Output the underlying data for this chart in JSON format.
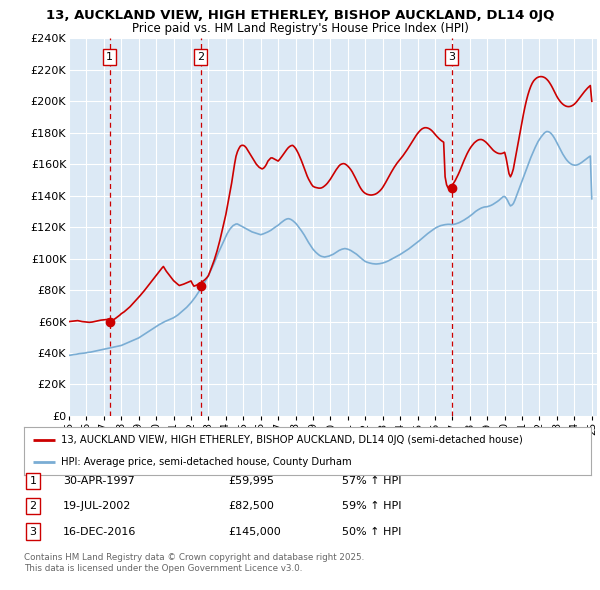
{
  "title": "13, AUCKLAND VIEW, HIGH ETHERLEY, BISHOP AUCKLAND, DL14 0JQ",
  "subtitle": "Price paid vs. HM Land Registry's House Price Index (HPI)",
  "ylim": [
    0,
    240000
  ],
  "yticks": [
    0,
    20000,
    40000,
    60000,
    80000,
    100000,
    120000,
    140000,
    160000,
    180000,
    200000,
    220000,
    240000
  ],
  "ytick_labels": [
    "£0",
    "£20K",
    "£40K",
    "£60K",
    "£80K",
    "£100K",
    "£120K",
    "£140K",
    "£160K",
    "£180K",
    "£200K",
    "£220K",
    "£240K"
  ],
  "sales": [
    {
      "date_num": 1997.33,
      "price": 59995,
      "label": "1"
    },
    {
      "date_num": 2002.55,
      "price": 82500,
      "label": "2"
    },
    {
      "date_num": 2016.96,
      "price": 145000,
      "label": "3"
    }
  ],
  "sale_annotations": [
    {
      "label": "1",
      "date": "30-APR-1997",
      "price": "£59,995",
      "pct": "57% ↑ HPI"
    },
    {
      "label": "2",
      "date": "19-JUL-2002",
      "price": "£82,500",
      "pct": "59% ↑ HPI"
    },
    {
      "label": "3",
      "date": "16-DEC-2016",
      "price": "£145,000",
      "pct": "50% ↑ HPI"
    }
  ],
  "hpi_color": "#7aadd4",
  "price_color": "#cc0000",
  "vline_color": "#cc0000",
  "background_color": "#dce9f5",
  "grid_color": "#ffffff",
  "legend_label_red": "13, AUCKLAND VIEW, HIGH ETHERLEY, BISHOP AUCKLAND, DL14 0JQ (semi-detached house)",
  "legend_label_blue": "HPI: Average price, semi-detached house, County Durham",
  "footer": "Contains HM Land Registry data © Crown copyright and database right 2025.\nThis data is licensed under the Open Government Licence v3.0.",
  "hpi_data_x": [
    1995.0,
    1995.083,
    1995.167,
    1995.25,
    1995.333,
    1995.417,
    1995.5,
    1995.583,
    1995.667,
    1995.75,
    1995.833,
    1995.917,
    1996.0,
    1996.083,
    1996.167,
    1996.25,
    1996.333,
    1996.417,
    1996.5,
    1996.583,
    1996.667,
    1996.75,
    1996.833,
    1996.917,
    1997.0,
    1997.083,
    1997.167,
    1997.25,
    1997.333,
    1997.417,
    1997.5,
    1997.583,
    1997.667,
    1997.75,
    1997.833,
    1997.917,
    1998.0,
    1998.083,
    1998.167,
    1998.25,
    1998.333,
    1998.417,
    1998.5,
    1998.583,
    1998.667,
    1998.75,
    1998.833,
    1998.917,
    1999.0,
    1999.083,
    1999.167,
    1999.25,
    1999.333,
    1999.417,
    1999.5,
    1999.583,
    1999.667,
    1999.75,
    1999.833,
    1999.917,
    2000.0,
    2000.083,
    2000.167,
    2000.25,
    2000.333,
    2000.417,
    2000.5,
    2000.583,
    2000.667,
    2000.75,
    2000.833,
    2000.917,
    2001.0,
    2001.083,
    2001.167,
    2001.25,
    2001.333,
    2001.417,
    2001.5,
    2001.583,
    2001.667,
    2001.75,
    2001.833,
    2001.917,
    2002.0,
    2002.083,
    2002.167,
    2002.25,
    2002.333,
    2002.417,
    2002.5,
    2002.583,
    2002.667,
    2002.75,
    2002.833,
    2002.917,
    2003.0,
    2003.083,
    2003.167,
    2003.25,
    2003.333,
    2003.417,
    2003.5,
    2003.583,
    2003.667,
    2003.75,
    2003.833,
    2003.917,
    2004.0,
    2004.083,
    2004.167,
    2004.25,
    2004.333,
    2004.417,
    2004.5,
    2004.583,
    2004.667,
    2004.75,
    2004.833,
    2004.917,
    2005.0,
    2005.083,
    2005.167,
    2005.25,
    2005.333,
    2005.417,
    2005.5,
    2005.583,
    2005.667,
    2005.75,
    2005.833,
    2005.917,
    2006.0,
    2006.083,
    2006.167,
    2006.25,
    2006.333,
    2006.417,
    2006.5,
    2006.583,
    2006.667,
    2006.75,
    2006.833,
    2006.917,
    2007.0,
    2007.083,
    2007.167,
    2007.25,
    2007.333,
    2007.417,
    2007.5,
    2007.583,
    2007.667,
    2007.75,
    2007.833,
    2007.917,
    2008.0,
    2008.083,
    2008.167,
    2008.25,
    2008.333,
    2008.417,
    2008.5,
    2008.583,
    2008.667,
    2008.75,
    2008.833,
    2008.917,
    2009.0,
    2009.083,
    2009.167,
    2009.25,
    2009.333,
    2009.417,
    2009.5,
    2009.583,
    2009.667,
    2009.75,
    2009.833,
    2009.917,
    2010.0,
    2010.083,
    2010.167,
    2010.25,
    2010.333,
    2010.417,
    2010.5,
    2010.583,
    2010.667,
    2010.75,
    2010.833,
    2010.917,
    2011.0,
    2011.083,
    2011.167,
    2011.25,
    2011.333,
    2011.417,
    2011.5,
    2011.583,
    2011.667,
    2011.75,
    2011.833,
    2011.917,
    2012.0,
    2012.083,
    2012.167,
    2012.25,
    2012.333,
    2012.417,
    2012.5,
    2012.583,
    2012.667,
    2012.75,
    2012.833,
    2012.917,
    2013.0,
    2013.083,
    2013.167,
    2013.25,
    2013.333,
    2013.417,
    2013.5,
    2013.583,
    2013.667,
    2013.75,
    2013.833,
    2013.917,
    2014.0,
    2014.083,
    2014.167,
    2014.25,
    2014.333,
    2014.417,
    2014.5,
    2014.583,
    2014.667,
    2014.75,
    2014.833,
    2014.917,
    2015.0,
    2015.083,
    2015.167,
    2015.25,
    2015.333,
    2015.417,
    2015.5,
    2015.583,
    2015.667,
    2015.75,
    2015.833,
    2015.917,
    2016.0,
    2016.083,
    2016.167,
    2016.25,
    2016.333,
    2016.417,
    2016.5,
    2016.583,
    2016.667,
    2016.75,
    2016.833,
    2016.917,
    2017.0,
    2017.083,
    2017.167,
    2017.25,
    2017.333,
    2017.417,
    2017.5,
    2017.583,
    2017.667,
    2017.75,
    2017.833,
    2017.917,
    2018.0,
    2018.083,
    2018.167,
    2018.25,
    2018.333,
    2018.417,
    2018.5,
    2018.583,
    2018.667,
    2018.75,
    2018.833,
    2018.917,
    2019.0,
    2019.083,
    2019.167,
    2019.25,
    2019.333,
    2019.417,
    2019.5,
    2019.583,
    2019.667,
    2019.75,
    2019.833,
    2019.917,
    2020.0,
    2020.083,
    2020.167,
    2020.25,
    2020.333,
    2020.417,
    2020.5,
    2020.583,
    2020.667,
    2020.75,
    2020.833,
    2020.917,
    2021.0,
    2021.083,
    2021.167,
    2021.25,
    2021.333,
    2021.417,
    2021.5,
    2021.583,
    2021.667,
    2021.75,
    2021.833,
    2021.917,
    2022.0,
    2022.083,
    2022.167,
    2022.25,
    2022.333,
    2022.417,
    2022.5,
    2022.583,
    2022.667,
    2022.75,
    2022.833,
    2022.917,
    2023.0,
    2023.083,
    2023.167,
    2023.25,
    2023.333,
    2023.417,
    2023.5,
    2023.583,
    2023.667,
    2023.75,
    2023.833,
    2023.917,
    2024.0,
    2024.083,
    2024.167,
    2024.25,
    2024.333,
    2024.417,
    2024.5,
    2024.583,
    2024.667,
    2024.75,
    2024.833,
    2024.917,
    2025.0
  ],
  "hpi_data_y": [
    38500,
    38600,
    38800,
    39000,
    39100,
    39200,
    39400,
    39600,
    39700,
    39800,
    39900,
    40000,
    40200,
    40400,
    40500,
    40600,
    40800,
    41000,
    41200,
    41400,
    41600,
    41800,
    42000,
    42200,
    42400,
    42600,
    42800,
    43000,
    43200,
    43400,
    43600,
    43800,
    44000,
    44200,
    44400,
    44600,
    44800,
    45200,
    45600,
    46000,
    46400,
    46800,
    47200,
    47600,
    48000,
    48400,
    48800,
    49200,
    49600,
    50200,
    50800,
    51400,
    52000,
    52600,
    53200,
    53800,
    54400,
    55000,
    55600,
    56200,
    56800,
    57400,
    58000,
    58500,
    59000,
    59500,
    60000,
    60400,
    60800,
    61200,
    61600,
    62000,
    62400,
    63000,
    63600,
    64200,
    65000,
    65800,
    66600,
    67400,
    68200,
    69000,
    70000,
    71000,
    72000,
    73200,
    74400,
    75600,
    77000,
    78400,
    79800,
    81200,
    82600,
    84200,
    85800,
    87400,
    89200,
    91200,
    93200,
    95200,
    97200,
    99500,
    101800,
    104000,
    106000,
    108000,
    110000,
    112000,
    114000,
    116000,
    117500,
    119000,
    120000,
    121000,
    121500,
    122000,
    122000,
    121500,
    121000,
    120500,
    120000,
    119500,
    119000,
    118500,
    118000,
    117500,
    117000,
    116700,
    116400,
    116100,
    115800,
    115500,
    115200,
    115500,
    115800,
    116200,
    116600,
    117000,
    117500,
    118000,
    118700,
    119400,
    120000,
    120600,
    121200,
    122000,
    122800,
    123500,
    124200,
    124800,
    125200,
    125400,
    125200,
    124800,
    124200,
    123400,
    122600,
    121500,
    120200,
    119000,
    117800,
    116400,
    115000,
    113400,
    111800,
    110200,
    108800,
    107400,
    106000,
    105000,
    104000,
    103200,
    102400,
    101800,
    101400,
    101200,
    101000,
    101200,
    101400,
    101600,
    102000,
    102400,
    102800,
    103400,
    104000,
    104600,
    105200,
    105600,
    106000,
    106200,
    106400,
    106200,
    106000,
    105600,
    105200,
    104600,
    104000,
    103400,
    102800,
    102000,
    101200,
    100400,
    99600,
    98900,
    98200,
    97800,
    97500,
    97200,
    97000,
    96800,
    96700,
    96600,
    96600,
    96700,
    96800,
    97000,
    97200,
    97500,
    97800,
    98200,
    98600,
    99100,
    99600,
    100100,
    100600,
    101100,
    101600,
    102100,
    102600,
    103200,
    103800,
    104400,
    105000,
    105600,
    106200,
    106900,
    107600,
    108300,
    109000,
    109700,
    110400,
    111200,
    112000,
    112800,
    113600,
    114400,
    115200,
    115900,
    116600,
    117300,
    118000,
    118600,
    119200,
    119800,
    120200,
    120600,
    121000,
    121200,
    121400,
    121600,
    121700,
    121800,
    121800,
    121700,
    121600,
    121800,
    122000,
    122300,
    122600,
    123000,
    123500,
    124000,
    124500,
    125100,
    125700,
    126300,
    127000,
    127700,
    128400,
    129200,
    130000,
    130600,
    131200,
    131700,
    132200,
    132500,
    132800,
    132900,
    133000,
    133300,
    133600,
    134000,
    134500,
    135100,
    135700,
    136300,
    137000,
    137800,
    138600,
    139400,
    139500,
    138500,
    137000,
    135000,
    133500,
    134000,
    135000,
    137000,
    139500,
    142000,
    144500,
    147000,
    149500,
    152000,
    154500,
    157000,
    159500,
    162000,
    164200,
    166400,
    168500,
    170600,
    172500,
    174400,
    175800,
    177200,
    178400,
    179500,
    180300,
    180800,
    180700,
    180300,
    179500,
    178400,
    177000,
    175400,
    173600,
    171800,
    170000,
    168200,
    166500,
    165000,
    163600,
    162400,
    161400,
    160600,
    160000,
    159600,
    159400,
    159400,
    159600,
    160000,
    160500,
    161100,
    161800,
    162500,
    163200,
    163900,
    164600,
    165200,
    138000
  ],
  "price_data_x": [
    1995.0,
    1995.083,
    1995.167,
    1995.25,
    1995.333,
    1995.417,
    1995.5,
    1995.583,
    1995.667,
    1995.75,
    1995.833,
    1995.917,
    1996.0,
    1996.083,
    1996.167,
    1996.25,
    1996.333,
    1996.417,
    1996.5,
    1996.583,
    1996.667,
    1996.75,
    1996.833,
    1996.917,
    1997.0,
    1997.083,
    1997.167,
    1997.25,
    1997.333,
    1997.417,
    1997.5,
    1997.583,
    1997.667,
    1997.75,
    1997.833,
    1997.917,
    1998.0,
    1998.083,
    1998.167,
    1998.25,
    1998.333,
    1998.417,
    1998.5,
    1998.583,
    1998.667,
    1998.75,
    1998.833,
    1998.917,
    1999.0,
    1999.083,
    1999.167,
    1999.25,
    1999.333,
    1999.417,
    1999.5,
    1999.583,
    1999.667,
    1999.75,
    1999.833,
    1999.917,
    2000.0,
    2000.083,
    2000.167,
    2000.25,
    2000.333,
    2000.417,
    2000.5,
    2000.583,
    2000.667,
    2000.75,
    2000.833,
    2000.917,
    2001.0,
    2001.083,
    2001.167,
    2001.25,
    2001.333,
    2001.417,
    2001.5,
    2001.583,
    2001.667,
    2001.75,
    2001.833,
    2001.917,
    2002.0,
    2002.083,
    2002.167,
    2002.25,
    2002.333,
    2002.417,
    2002.5,
    2002.583,
    2002.667,
    2002.75,
    2002.833,
    2002.917,
    2003.0,
    2003.083,
    2003.167,
    2003.25,
    2003.333,
    2003.417,
    2003.5,
    2003.583,
    2003.667,
    2003.75,
    2003.833,
    2003.917,
    2004.0,
    2004.083,
    2004.167,
    2004.25,
    2004.333,
    2004.417,
    2004.5,
    2004.583,
    2004.667,
    2004.75,
    2004.833,
    2004.917,
    2005.0,
    2005.083,
    2005.167,
    2005.25,
    2005.333,
    2005.417,
    2005.5,
    2005.583,
    2005.667,
    2005.75,
    2005.833,
    2005.917,
    2006.0,
    2006.083,
    2006.167,
    2006.25,
    2006.333,
    2006.417,
    2006.5,
    2006.583,
    2006.667,
    2006.75,
    2006.833,
    2006.917,
    2007.0,
    2007.083,
    2007.167,
    2007.25,
    2007.333,
    2007.417,
    2007.5,
    2007.583,
    2007.667,
    2007.75,
    2007.833,
    2007.917,
    2008.0,
    2008.083,
    2008.167,
    2008.25,
    2008.333,
    2008.417,
    2008.5,
    2008.583,
    2008.667,
    2008.75,
    2008.833,
    2008.917,
    2009.0,
    2009.083,
    2009.167,
    2009.25,
    2009.333,
    2009.417,
    2009.5,
    2009.583,
    2009.667,
    2009.75,
    2009.833,
    2009.917,
    2010.0,
    2010.083,
    2010.167,
    2010.25,
    2010.333,
    2010.417,
    2010.5,
    2010.583,
    2010.667,
    2010.75,
    2010.833,
    2010.917,
    2011.0,
    2011.083,
    2011.167,
    2011.25,
    2011.333,
    2011.417,
    2011.5,
    2011.583,
    2011.667,
    2011.75,
    2011.833,
    2011.917,
    2012.0,
    2012.083,
    2012.167,
    2012.25,
    2012.333,
    2012.417,
    2012.5,
    2012.583,
    2012.667,
    2012.75,
    2012.833,
    2012.917,
    2013.0,
    2013.083,
    2013.167,
    2013.25,
    2013.333,
    2013.417,
    2013.5,
    2013.583,
    2013.667,
    2013.75,
    2013.833,
    2013.917,
    2014.0,
    2014.083,
    2014.167,
    2014.25,
    2014.333,
    2014.417,
    2014.5,
    2014.583,
    2014.667,
    2014.75,
    2014.833,
    2014.917,
    2015.0,
    2015.083,
    2015.167,
    2015.25,
    2015.333,
    2015.417,
    2015.5,
    2015.583,
    2015.667,
    2015.75,
    2015.833,
    2015.917,
    2016.0,
    2016.083,
    2016.167,
    2016.25,
    2016.333,
    2016.417,
    2016.5,
    2016.583,
    2016.667,
    2016.75,
    2016.833,
    2016.917,
    2017.0,
    2017.083,
    2017.167,
    2017.25,
    2017.333,
    2017.417,
    2017.5,
    2017.583,
    2017.667,
    2017.75,
    2017.833,
    2017.917,
    2018.0,
    2018.083,
    2018.167,
    2018.25,
    2018.333,
    2018.417,
    2018.5,
    2018.583,
    2018.667,
    2018.75,
    2018.833,
    2018.917,
    2019.0,
    2019.083,
    2019.167,
    2019.25,
    2019.333,
    2019.417,
    2019.5,
    2019.583,
    2019.667,
    2019.75,
    2019.833,
    2019.917,
    2020.0,
    2020.083,
    2020.167,
    2020.25,
    2020.333,
    2020.417,
    2020.5,
    2020.583,
    2020.667,
    2020.75,
    2020.833,
    2020.917,
    2021.0,
    2021.083,
    2021.167,
    2021.25,
    2021.333,
    2021.417,
    2021.5,
    2021.583,
    2021.667,
    2021.75,
    2021.833,
    2021.917,
    2022.0,
    2022.083,
    2022.167,
    2022.25,
    2022.333,
    2022.417,
    2022.5,
    2022.583,
    2022.667,
    2022.75,
    2022.833,
    2022.917,
    2023.0,
    2023.083,
    2023.167,
    2023.25,
    2023.333,
    2023.417,
    2023.5,
    2023.583,
    2023.667,
    2023.75,
    2023.833,
    2023.917,
    2024.0,
    2024.083,
    2024.167,
    2024.25,
    2024.333,
    2024.417,
    2024.5,
    2024.583,
    2024.667,
    2024.75,
    2024.833,
    2024.917,
    2025.0
  ],
  "price_data_y": [
    59995,
    60100,
    60200,
    60300,
    60400,
    60500,
    60600,
    60400,
    60200,
    60000,
    59900,
    59800,
    59700,
    59600,
    59500,
    59600,
    59700,
    59900,
    60100,
    60300,
    60500,
    60700,
    60900,
    61000,
    61100,
    61200,
    61300,
    61500,
    59995,
    60200,
    60800,
    61400,
    62000,
    62700,
    63400,
    64100,
    65000,
    65600,
    66200,
    67000,
    67800,
    68600,
    69400,
    70400,
    71400,
    72400,
    73400,
    74400,
    75400,
    76500,
    77600,
    78700,
    79800,
    81000,
    82200,
    83400,
    84600,
    85800,
    87000,
    88200,
    89400,
    90600,
    91800,
    93000,
    94000,
    95000,
    93500,
    92000,
    90800,
    89600,
    88400,
    87200,
    86000,
    85200,
    84400,
    83600,
    82900,
    83200,
    83500,
    83800,
    84200,
    84600,
    85000,
    85400,
    85800,
    84000,
    82500,
    82800,
    83200,
    83700,
    84200,
    84800,
    85500,
    86200,
    87000,
    88000,
    89200,
    91500,
    94000,
    96500,
    99000,
    102000,
    105000,
    108500,
    112000,
    116000,
    120000,
    124000,
    128000,
    133000,
    138000,
    143000,
    148000,
    154000,
    160000,
    165000,
    168000,
    170000,
    171500,
    172000,
    172000,
    171500,
    170500,
    169000,
    167500,
    166000,
    164500,
    163000,
    161500,
    160000,
    159000,
    158000,
    157500,
    157000,
    157500,
    158500,
    160000,
    162000,
    163000,
    164000,
    164000,
    163500,
    163000,
    162500,
    162000,
    163000,
    164200,
    165500,
    166800,
    168200,
    169400,
    170500,
    171300,
    171800,
    172000,
    171200,
    170100,
    168500,
    166700,
    164600,
    162400,
    160000,
    157500,
    155000,
    152500,
    150500,
    148800,
    147200,
    146000,
    145500,
    145200,
    145000,
    144800,
    144800,
    145000,
    145500,
    146200,
    147000,
    148000,
    149200,
    150500,
    152000,
    153500,
    155000,
    156500,
    157800,
    159000,
    159800,
    160200,
    160400,
    160200,
    159600,
    158800,
    157800,
    156600,
    155200,
    153500,
    151700,
    149800,
    147900,
    146100,
    144500,
    143200,
    142200,
    141500,
    141000,
    140700,
    140500,
    140400,
    140500,
    140700,
    141000,
    141500,
    142200,
    143000,
    144000,
    145200,
    146700,
    148300,
    150000,
    151700,
    153400,
    155000,
    156600,
    158100,
    159500,
    160800,
    162000,
    163100,
    164200,
    165400,
    166700,
    168000,
    169400,
    170800,
    172300,
    173800,
    175300,
    176800,
    178200,
    179500,
    180600,
    181600,
    182400,
    182900,
    183200,
    183200,
    183000,
    182600,
    182000,
    181200,
    180200,
    179100,
    178000,
    177000,
    176100,
    175300,
    174600,
    174000,
    152000,
    147000,
    145000,
    145500,
    146200,
    147000,
    148200,
    149700,
    151500,
    153400,
    155500,
    157800,
    160100,
    162300,
    164400,
    166400,
    168200,
    169800,
    171200,
    172400,
    173500,
    174300,
    175000,
    175500,
    175700,
    175700,
    175400,
    174800,
    174100,
    173200,
    172200,
    171100,
    170000,
    169000,
    168200,
    167600,
    167100,
    166800,
    166700,
    166800,
    167100,
    167600,
    164000,
    159000,
    154000,
    152000,
    154000,
    157000,
    162000,
    167000,
    172000,
    177000,
    182000,
    187000,
    192000,
    196500,
    200500,
    204000,
    207000,
    209500,
    211500,
    213000,
    214000,
    214800,
    215300,
    215600,
    215700,
    215600,
    215300,
    214800,
    214000,
    213000,
    211700,
    210200,
    208500,
    206600,
    204800,
    203000,
    201500,
    200200,
    199100,
    198200,
    197500,
    197000,
    196700,
    196600,
    196700,
    197000,
    197500,
    198200,
    199100,
    200200,
    201400,
    202600,
    203800,
    205000,
    206200,
    207300,
    208300,
    209200,
    210000,
    200000
  ]
}
